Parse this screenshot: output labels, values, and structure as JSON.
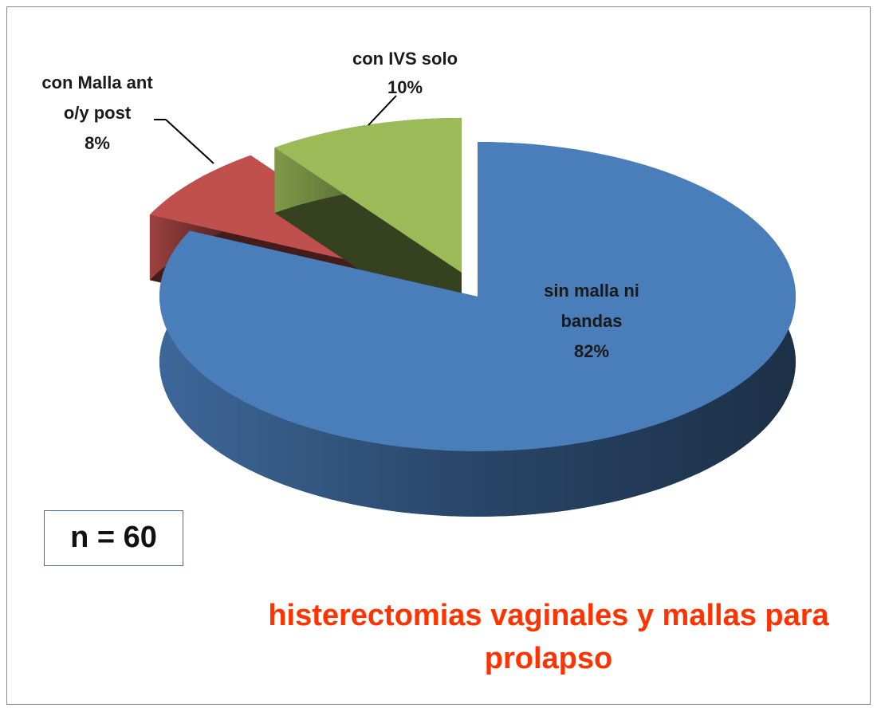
{
  "chart_data": {
    "type": "pie3d",
    "title": "histerectomias vaginales y mallas para prolapso",
    "annotation": "n = 60",
    "categories": [
      "sin malla ni bandas",
      "con Malla ant o/y post",
      "con IVS solo"
    ],
    "values": [
      82,
      8,
      10
    ],
    "value_labels": [
      "82%",
      "8%",
      "10%"
    ],
    "colors": [
      "#4a7ebb",
      "#c0504d",
      "#9bbb59"
    ],
    "exploded": [
      false,
      true,
      true
    ]
  }
}
